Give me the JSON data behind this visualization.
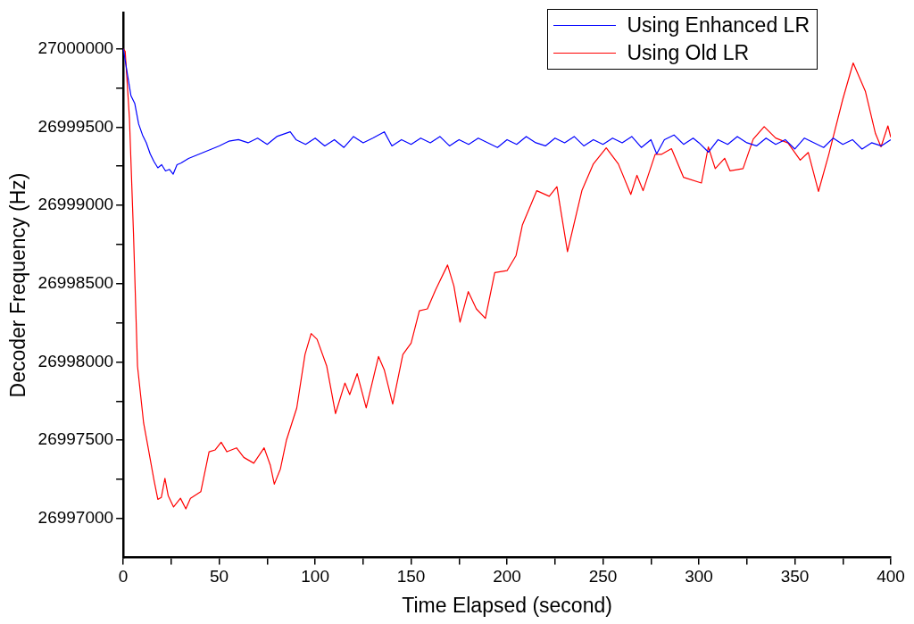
{
  "chart_data": {
    "type": "line",
    "xlabel": "Time Elapsed (second)",
    "ylabel": "Decoder Frequency (Hz)",
    "xlim": [
      0,
      400
    ],
    "ylim": [
      26996750,
      27000230
    ],
    "xticks": [
      0,
      {
        "value": 25,
        "label": null
      },
      50,
      {
        "value": 75,
        "label": null
      },
      100,
      {
        "value": 125,
        "label": null
      },
      150,
      {
        "value": 175,
        "label": null
      },
      200,
      {
        "value": 225,
        "label": null
      },
      250,
      {
        "value": 275,
        "label": null
      },
      300,
      {
        "value": 325,
        "label": null
      },
      350,
      {
        "value": 375,
        "label": null
      },
      400
    ],
    "yticks": [
      {
        "value": 26997000,
        "label": "26997000"
      },
      {
        "value": 26997250,
        "label": null
      },
      {
        "value": 26997500,
        "label": "26997500"
      },
      {
        "value": 26997750,
        "label": null
      },
      {
        "value": 26998000,
        "label": "26998000"
      },
      {
        "value": 26998250,
        "label": null
      },
      {
        "value": 26998500,
        "label": "26998500"
      },
      {
        "value": 26998750,
        "label": null
      },
      {
        "value": 26999000,
        "label": "26999000"
      },
      {
        "value": 26999250,
        "label": null
      },
      {
        "value": 26999500,
        "label": "26999500"
      },
      {
        "value": 26999750,
        "label": null
      },
      {
        "value": 27000000,
        "label": "27000000"
      }
    ],
    "grid": false,
    "legend": "top right",
    "marker": "none",
    "line_style": "solid",
    "series": [
      {
        "name": "Using Enhanced LR",
        "color": "#0000ff",
        "x": [
          0,
          2,
          4,
          6,
          8,
          10,
          12,
          14,
          16,
          18,
          20,
          22,
          24,
          26,
          28,
          30,
          34,
          38,
          42,
          46,
          50,
          55,
          60,
          65,
          70,
          75,
          80,
          87,
          90,
          95,
          100,
          105,
          110,
          115,
          120,
          125,
          130,
          136,
          140,
          145,
          150,
          155,
          160,
          165,
          170,
          175,
          180,
          185,
          190,
          195,
          200,
          205,
          210,
          215,
          220,
          225,
          230,
          235,
          240,
          245,
          250,
          255,
          260,
          265,
          270,
          275,
          278,
          282,
          287,
          292,
          297,
          300,
          305,
          310,
          315,
          320,
          325,
          330,
          335,
          340,
          345,
          350,
          355,
          360,
          365,
          370,
          375,
          380,
          385,
          390,
          395,
          400
        ],
        "values": [
          27000000,
          26999850,
          26999700,
          26999650,
          26999520,
          26999450,
          26999400,
          26999330,
          26999280,
          26999240,
          26999260,
          26999220,
          26999230,
          26999200,
          26999260,
          26999270,
          26999300,
          26999320,
          26999340,
          26999360,
          26999380,
          26999410,
          26999420,
          26999400,
          26999430,
          26999390,
          26999440,
          26999470,
          26999420,
          26999390,
          26999430,
          26999380,
          26999420,
          26999370,
          26999440,
          26999400,
          26999430,
          26999470,
          26999380,
          26999420,
          26999390,
          26999430,
          26999400,
          26999440,
          26999380,
          26999420,
          26999390,
          26999430,
          26999400,
          26999370,
          26999420,
          26999390,
          26999440,
          26999400,
          26999380,
          26999430,
          26999400,
          26999440,
          26999380,
          26999420,
          26999390,
          26999430,
          26999400,
          26999440,
          26999370,
          26999420,
          26999330,
          26999420,
          26999450,
          26999390,
          26999430,
          26999400,
          26999340,
          26999420,
          26999390,
          26999440,
          26999400,
          26999380,
          26999430,
          26999390,
          26999420,
          26999360,
          26999430,
          26999400,
          26999370,
          26999430,
          26999390,
          26999420,
          26999360,
          26999400,
          26999380,
          26999420
        ]
      },
      {
        "name": "Using Old LR",
        "color": "#ff0000",
        "x": [
          0,
          1,
          3.2,
          5.3,
          7.4,
          10.6,
          12.8,
          16,
          18,
          19.8,
          21.7,
          23.4,
          26.2,
          29.8,
          32.6,
          35,
          40.4,
          44.7,
          47.9,
          51,
          54,
          59,
          62.8,
          68,
          73.4,
          76.6,
          78.7,
          81.9,
          85,
          90.4,
          94.7,
          97.9,
          101,
          106,
          110.6,
          115.5,
          118,
          121.9,
          126.6,
          133,
          136,
          140.4,
          145.7,
          150,
          154.3,
          158.5,
          162.8,
          169,
          172.3,
          175.5,
          179.8,
          184,
          188.7,
          193.6,
          200,
          204.7,
          208,
          215.5,
          222,
          226,
          231.5,
          239,
          245,
          251.7,
          258,
          264.5,
          267.7,
          270.9,
          277.2,
          280.4,
          285.7,
          292,
          301.3,
          304.9,
          308.5,
          313.4,
          316.2,
          323,
          328.3,
          334,
          340,
          346.4,
          352.8,
          357,
          362.3,
          367.7,
          375,
          380.4,
          386.8,
          392,
          394.9,
          398.5,
          400
        ],
        "values": [
          27000000,
          26999983,
          26999557,
          26998826,
          26997974,
          26997609,
          26997463,
          26997244,
          26997122,
          26997134,
          26997256,
          26997146,
          26997073,
          26997129,
          26997061,
          26997129,
          26997171,
          26997426,
          26997438,
          26997487,
          26997426,
          26997451,
          26997390,
          26997353,
          26997451,
          26997341,
          26997219,
          26997317,
          26997499,
          26997706,
          26998047,
          26998181,
          26998144,
          26997974,
          26997670,
          26997865,
          26997791,
          26997925,
          26997706,
          26998035,
          26997950,
          26997731,
          26998047,
          26998120,
          26998327,
          26998339,
          26998461,
          26998619,
          26998485,
          26998254,
          26998449,
          26998339,
          26998278,
          26998571,
          26998583,
          26998680,
          26998875,
          26999094,
          26999058,
          26999119,
          26998705,
          26999094,
          26999265,
          26999367,
          26999265,
          26999070,
          26999192,
          26999094,
          26999326,
          26999326,
          26999362,
          26999179,
          26999143,
          26999374,
          26999235,
          26999301,
          26999221,
          26999235,
          26999423,
          26999503,
          26999430,
          26999399,
          26999289,
          26999338,
          26999089,
          26999326,
          26999679,
          26999910,
          26999727,
          26999459,
          26999374,
          26999508,
          26999435
        ]
      }
    ]
  }
}
